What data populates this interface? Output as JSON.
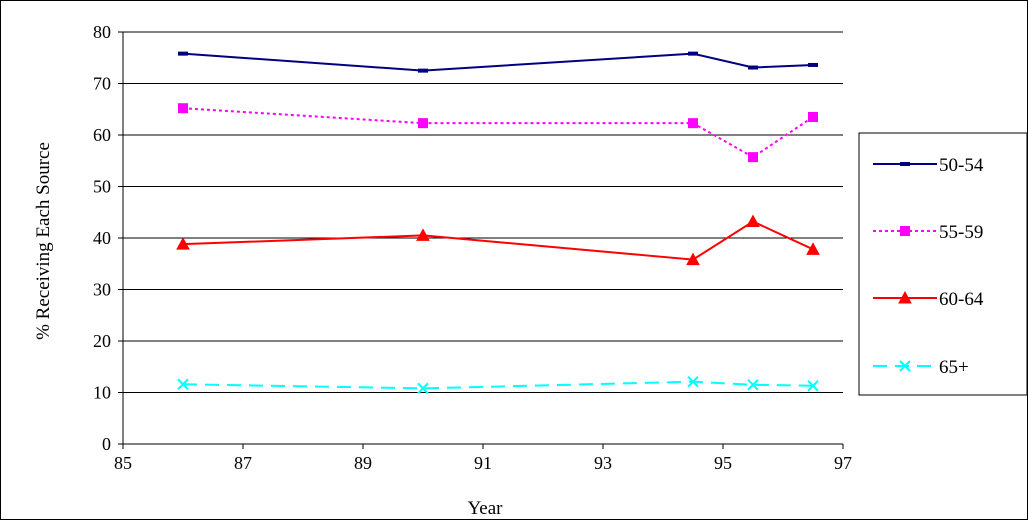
{
  "chart_data": {
    "type": "line",
    "title": "",
    "xlabel": "Year",
    "ylabel": "% Receiving Each Source",
    "xlim": [
      85,
      97
    ],
    "ylim": [
      0,
      80
    ],
    "xticks": [
      85,
      87,
      89,
      91,
      93,
      95,
      97
    ],
    "yticks": [
      0,
      10,
      20,
      30,
      40,
      50,
      60,
      70,
      80
    ],
    "grid": "horizontal",
    "legend_position": "right",
    "x": [
      86,
      90,
      94.5,
      95.5,
      96.5
    ],
    "series": [
      {
        "name": "50-54",
        "values": [
          75.8,
          72.5,
          75.8,
          73.1,
          73.6
        ],
        "color": "#000080",
        "dash": "solid",
        "marker": "dash"
      },
      {
        "name": "55-59",
        "values": [
          65.2,
          62.3,
          62.3,
          55.7,
          63.5
        ],
        "color": "#ff00ff",
        "dash": "dotted",
        "marker": "square"
      },
      {
        "name": "60-64",
        "values": [
          38.8,
          40.5,
          35.8,
          43.2,
          37.8
        ],
        "color": "#ff0000",
        "dash": "solid",
        "marker": "triangle"
      },
      {
        "name": "65+",
        "values": [
          11.6,
          10.8,
          12.1,
          11.5,
          11.3
        ],
        "color": "#00ffff",
        "dash": "dashed",
        "marker": "x"
      }
    ]
  }
}
